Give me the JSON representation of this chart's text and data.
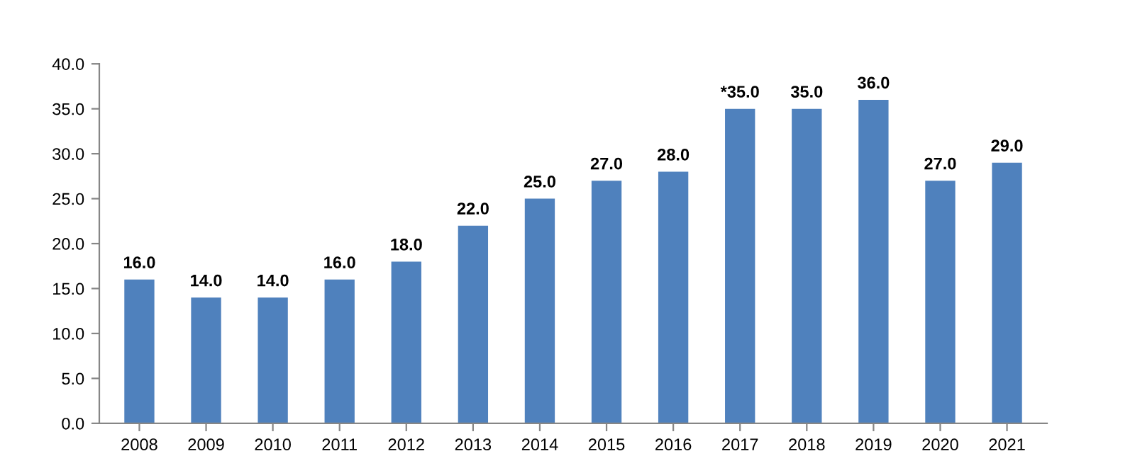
{
  "chart_data": {
    "type": "bar",
    "categories": [
      "2008",
      "2009",
      "2010",
      "2011",
      "2012",
      "2013",
      "2014",
      "2015",
      "2016",
      "2017",
      "2018",
      "2019",
      "2020",
      "2021"
    ],
    "values": [
      16,
      14,
      14,
      16,
      18,
      22,
      25,
      27,
      28,
      35,
      35,
      36,
      27,
      29
    ],
    "value_labels": [
      "16.0",
      "14.0",
      "14.0",
      "16.0",
      "18.0",
      "22.0",
      "25.0",
      "27.0",
      "28.0",
      "*35.0",
      "35.0",
      "36.0",
      "27.0",
      "29.0"
    ],
    "color": "#4f81bd",
    "ylim": [
      0,
      40
    ],
    "yticks": [
      {
        "value": 0,
        "label": "0.0"
      },
      {
        "value": 5,
        "label": "5.0"
      },
      {
        "value": 10,
        "label": "10.0"
      },
      {
        "value": 15,
        "label": "15.0"
      },
      {
        "value": 20,
        "label": "20.0"
      },
      {
        "value": 25,
        "label": "25.0"
      },
      {
        "value": 30,
        "label": "30.0"
      },
      {
        "value": 35,
        "label": "35.0"
      },
      {
        "value": 40,
        "label": "40.0"
      }
    ],
    "grid": false,
    "legend": false
  }
}
